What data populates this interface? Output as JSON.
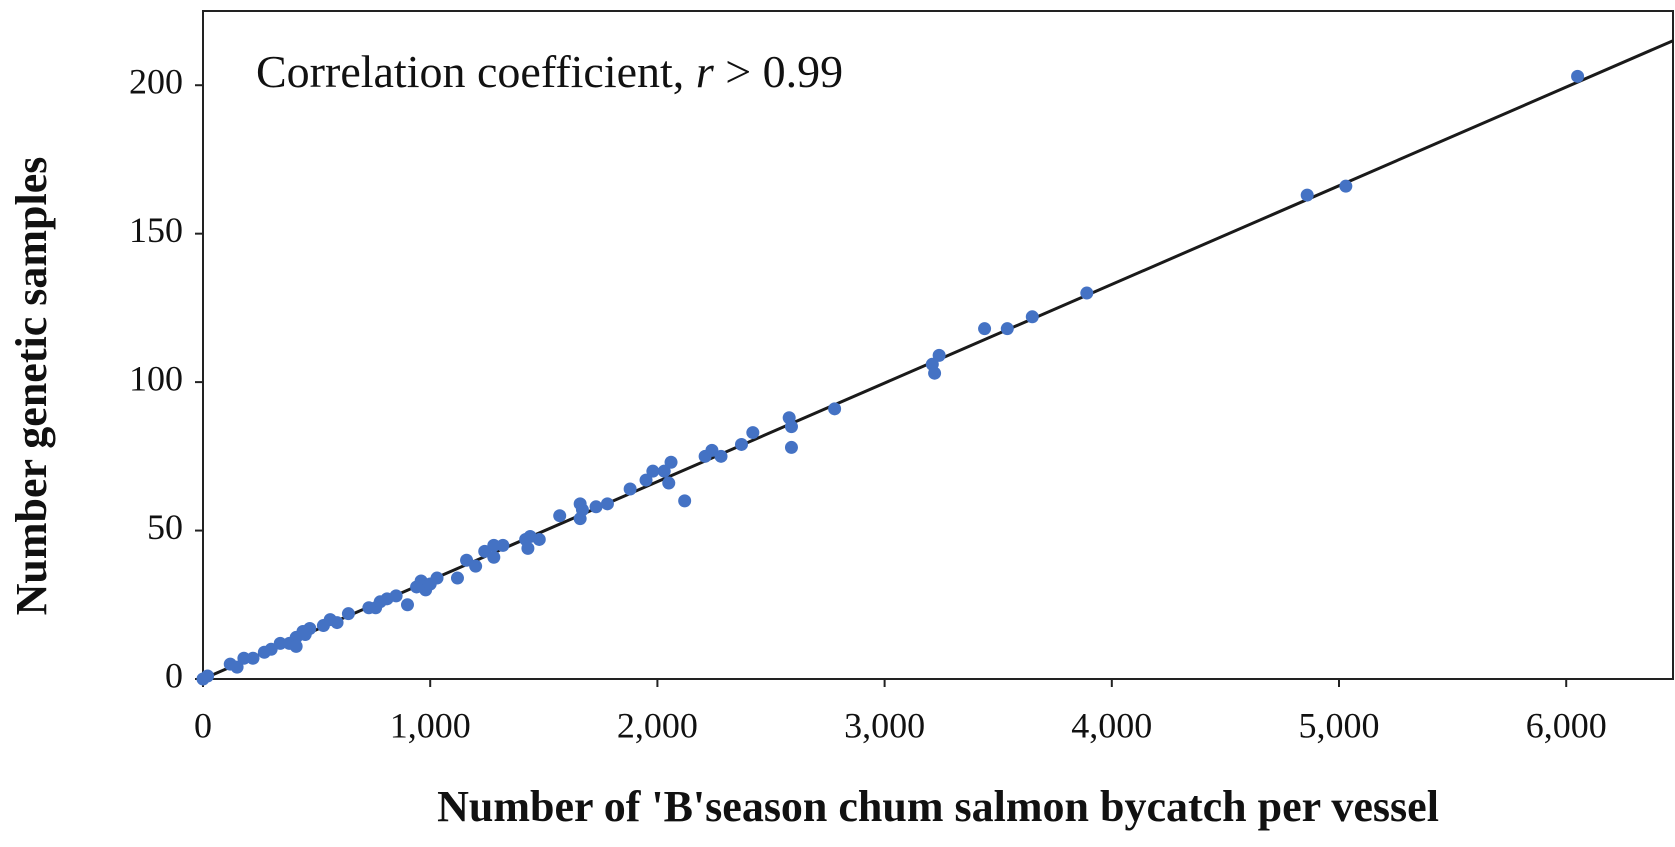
{
  "chart_data": {
    "type": "scatter",
    "annotation_parts": [
      "Correlation coefficient, ",
      "r",
      " > 0.99"
    ],
    "xlabel": "Number of 'B'season chum salmon bycatch per vessel",
    "ylabel": "Number genetic samples",
    "color": "#4472c4",
    "line_color": "#1a1a1a",
    "xlim": [
      0,
      6470
    ],
    "ylim": [
      0,
      225
    ],
    "xticks": [
      0,
      {
        "value": 1000,
        "label": "1,000"
      },
      {
        "value": 2000,
        "label": "2,000"
      },
      {
        "value": 3000,
        "label": "3,000"
      },
      {
        "value": 4000,
        "label": "4,000"
      },
      {
        "value": 5000,
        "label": "5,000"
      },
      {
        "value": 6000,
        "label": "6,000"
      }
    ],
    "yticks": [
      0,
      50,
      100,
      150,
      200
    ],
    "fit_line": {
      "x": [
        0,
        6470
      ],
      "y": [
        0,
        215
      ]
    },
    "x": [
      0,
      20,
      120,
      150,
      180,
      220,
      270,
      300,
      340,
      380,
      410,
      410,
      440,
      470,
      450,
      530,
      560,
      590,
      640,
      730,
      760,
      780,
      810,
      850,
      900,
      940,
      960,
      980,
      1000,
      1030,
      1120,
      1160,
      1200,
      1240,
      1280,
      1280,
      1320,
      1420,
      1430,
      1440,
      1480,
      1570,
      1660,
      1660,
      1670,
      1730,
      1780,
      1880,
      1950,
      1980,
      2030,
      2050,
      2060,
      2120,
      2210,
      2240,
      2280,
      2370,
      2420,
      2580,
      2590,
      2590,
      2780,
      3210,
      3220,
      3240,
      3440,
      3540,
      3650,
      3890,
      4860,
      5030,
      6050
    ],
    "values": [
      0,
      1,
      5,
      4,
      7,
      7,
      9,
      10,
      12,
      12,
      14,
      11,
      16,
      17,
      15,
      18,
      20,
      19,
      22,
      24,
      24,
      26,
      27,
      28,
      25,
      31,
      33,
      30,
      32,
      34,
      34,
      40,
      38,
      43,
      45,
      41,
      45,
      47,
      44,
      48,
      47,
      55,
      54,
      59,
      57,
      58,
      59,
      64,
      67,
      70,
      70,
      66,
      73,
      60,
      75,
      77,
      75,
      79,
      83,
      88,
      85,
      78,
      91,
      106,
      103,
      109,
      118,
      118,
      122,
      130,
      163,
      166,
      203
    ]
  }
}
